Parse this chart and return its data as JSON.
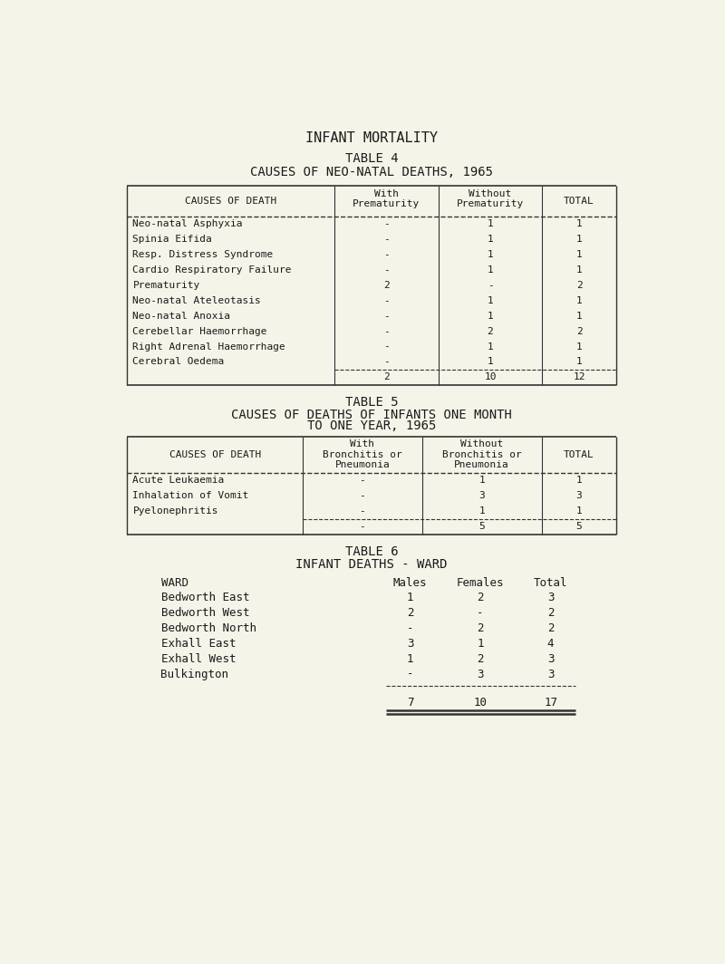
{
  "bg_color": "#f5f4e8",
  "text_color": "#1a1a1a",
  "title": "INFANT MORTALITY",
  "table4_title": "TABLE 4",
  "table4_subtitle": "CAUSES OF NEO-NATAL DEATHS, 1965",
  "table4_rows": [
    [
      "Neo-natal Asphyxia",
      "-",
      "1",
      "1"
    ],
    [
      "Spinia Eifida",
      "-",
      "1",
      "1"
    ],
    [
      "Resp. Distress Syndrome",
      "-",
      "1",
      "1"
    ],
    [
      "Cardio Respiratory Failure",
      "-",
      "1",
      "1"
    ],
    [
      "Prematurity",
      "2",
      "-",
      "2"
    ],
    [
      "Neo-natal Ateleotasis",
      "-",
      "1",
      "1"
    ],
    [
      "Neo-natal Anoxia",
      "-",
      "1",
      "1"
    ],
    [
      "Cerebellar Haemorrhage",
      "-",
      "2",
      "2"
    ],
    [
      "Right Adrenal Haemorrhage",
      "-",
      "1",
      "1"
    ],
    [
      "Cerebral Oedema",
      "-",
      "1",
      "1"
    ]
  ],
  "table4_totals": [
    "",
    "2",
    "10",
    "12"
  ],
  "table5_title": "TABLE 5",
  "table5_subtitle_line1": "CAUSES OF DEATHS OF INFANTS ONE MONTH",
  "table5_subtitle_line2": "TO ONE YEAR, 1965",
  "table5_rows": [
    [
      "Acute Leukaemia",
      "-",
      "1",
      "1"
    ],
    [
      "Inhalation of Vomit",
      "-",
      "3",
      "3"
    ],
    [
      "Pyelonephritis",
      "-",
      "1",
      "1"
    ]
  ],
  "table5_totals": [
    "",
    "-",
    "5",
    "5"
  ],
  "table6_title": "TABLE 6",
  "table6_subtitle": "INFANT DEATHS - WARD",
  "table6_col_headers": [
    "WARD",
    "Males",
    "Females",
    "Total"
  ],
  "table6_rows": [
    [
      "Bedworth East",
      "1",
      "2",
      "3"
    ],
    [
      "Bedworth West",
      "2",
      "-",
      "2"
    ],
    [
      "Bedworth North",
      "-",
      "2",
      "2"
    ],
    [
      "Exhall East",
      "3",
      "1",
      "4"
    ],
    [
      "Exhall West",
      "1",
      "2",
      "3"
    ],
    [
      "Bulkington",
      "-",
      "3",
      "3"
    ]
  ],
  "table6_totals": [
    "",
    "7",
    "10",
    "17"
  ],
  "font_family": "monospace"
}
